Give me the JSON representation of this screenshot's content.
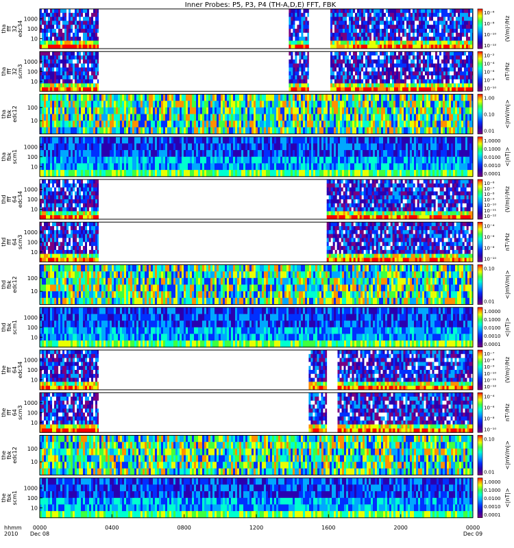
{
  "chart_data": {
    "type": "heatmap",
    "title": "Inner Probes: P5, P3, P4 (TH-A,D,E) FFT, FBK",
    "x_axis": {
      "label_top": "hhmm",
      "label_bottom": "2010",
      "range_hours": [
        0,
        24
      ],
      "ticks": [
        {
          "hour": 0,
          "label": "0000",
          "sublabel": "Dec 08"
        },
        {
          "hour": 4,
          "label": "0400",
          "sublabel": ""
        },
        {
          "hour": 8,
          "label": "0800",
          "sublabel": ""
        },
        {
          "hour": 12,
          "label": "1200",
          "sublabel": ""
        },
        {
          "hour": 16,
          "label": "1600",
          "sublabel": ""
        },
        {
          "hour": 20,
          "label": "2000",
          "sublabel": ""
        },
        {
          "hour": 24,
          "label": "0000",
          "sublabel": "Dec 09"
        }
      ]
    },
    "colorscale": [
      "#ffffff",
      "#7a0080",
      "#2a00b0",
      "#0030ff",
      "#00a8ff",
      "#00ffd0",
      "#40ff40",
      "#e8ff00",
      "#ff9000",
      "#ff0000"
    ],
    "panels": [
      {
        "probe": "tha",
        "ylabel": [
          "tha",
          "fff",
          "32",
          "edc34"
        ],
        "yticks": [
          "1000",
          "100",
          "10"
        ],
        "cbar_label": "(V/m)²/Hz",
        "cbar_ticks": [
          "10⁻⁶",
          "10⁻⁸",
          "10⁻¹⁰",
          "10⁻¹²"
        ],
        "kind": "fff",
        "data_segments_hours": [
          [
            0,
            3.25
          ],
          [
            13.8,
            14.9
          ],
          [
            16.1,
            24
          ]
        ]
      },
      {
        "probe": "tha",
        "ylabel": [
          "tha",
          "fff",
          "32",
          "scm3"
        ],
        "yticks": [
          "1000",
          "100",
          "10"
        ],
        "cbar_label": "nT²/Hz",
        "cbar_ticks": [
          "10⁻²",
          "10⁻⁴",
          "10⁻⁶",
          "10⁻⁸",
          "10⁻¹⁰"
        ],
        "kind": "fff",
        "data_segments_hours": [
          [
            0,
            3.25
          ],
          [
            13.8,
            14.9
          ],
          [
            16.1,
            24
          ]
        ]
      },
      {
        "probe": "tha",
        "ylabel": [
          "tha",
          "fbk",
          "edc12"
        ],
        "yticks": [
          "100",
          "10"
        ],
        "cbar_label": "<|mV/m|>",
        "cbar_ticks": [
          "1.00",
          "0.10",
          "0.01"
        ],
        "kind": "fbk_e",
        "data_segments_hours": [
          [
            0,
            24
          ]
        ]
      },
      {
        "probe": "tha",
        "ylabel": [
          "tha",
          "fbk",
          "scm1"
        ],
        "yticks": [
          "1000",
          "100",
          "10"
        ],
        "cbar_label": "<|nT|>",
        "cbar_ticks": [
          "1.0000",
          "0.1000",
          "0.0100",
          "0.0010",
          "0.0001"
        ],
        "kind": "fbk_b",
        "data_segments_hours": [
          [
            0,
            24
          ]
        ]
      },
      {
        "probe": "thd",
        "ylabel": [
          "thd",
          "fff",
          "64",
          "edc34"
        ],
        "yticks": [
          "1000",
          "100",
          "10"
        ],
        "cbar_label": "(V/m)²/Hz",
        "cbar_ticks": [
          "10⁻⁶",
          "10⁻⁷",
          "10⁻⁸",
          "10⁻⁹",
          "10⁻¹⁰",
          "10⁻¹¹",
          "10⁻¹²"
        ],
        "kind": "fff",
        "data_segments_hours": [
          [
            0,
            3.25
          ],
          [
            15.9,
            24
          ]
        ]
      },
      {
        "probe": "thd",
        "ylabel": [
          "thd",
          "fff",
          "64",
          "scm3"
        ],
        "yticks": [
          "1000",
          "100",
          "10"
        ],
        "cbar_label": "nT²/Hz",
        "cbar_ticks": [
          "10⁻⁴",
          "10⁻⁶",
          "10⁻⁸",
          "10⁻¹⁰"
        ],
        "kind": "fff",
        "data_segments_hours": [
          [
            0,
            3.25
          ],
          [
            15.9,
            24
          ]
        ]
      },
      {
        "probe": "thd",
        "ylabel": [
          "thd",
          "fbk",
          "edc12"
        ],
        "yticks": [
          "100",
          "10"
        ],
        "cbar_label": "<|mV/m|>",
        "cbar_ticks": [
          "0.10",
          "0.01"
        ],
        "kind": "fbk_e",
        "data_segments_hours": [
          [
            0,
            24
          ]
        ]
      },
      {
        "probe": "thd",
        "ylabel": [
          "thd",
          "fbk",
          "scm1"
        ],
        "yticks": [
          "1000",
          "100",
          "10"
        ],
        "cbar_label": "<|nT|>",
        "cbar_ticks": [
          "1.0000",
          "0.1000",
          "0.0100",
          "0.0010",
          "0.0001"
        ],
        "kind": "fbk_b",
        "data_segments_hours": [
          [
            0,
            24
          ]
        ]
      },
      {
        "probe": "the",
        "ylabel": [
          "the",
          "fff",
          "64",
          "edc34"
        ],
        "yticks": [
          "1000",
          "100",
          "10"
        ],
        "cbar_label": "(V/m)²/Hz",
        "cbar_ticks": [
          "10⁻⁷",
          "10⁻⁸",
          "10⁻⁹",
          "10⁻¹⁰",
          "10⁻¹¹",
          "10⁻¹²"
        ],
        "kind": "fff",
        "data_segments_hours": [
          [
            0,
            3.25
          ],
          [
            14.9,
            15.9
          ],
          [
            16.5,
            24
          ]
        ]
      },
      {
        "probe": "the",
        "ylabel": [
          "the",
          "fff",
          "64",
          "scm3"
        ],
        "yticks": [
          "1000",
          "100",
          "10"
        ],
        "cbar_label": "nT²/Hz",
        "cbar_ticks": [
          "10⁻⁴",
          "10⁻⁶",
          "10⁻⁸",
          "10⁻¹⁰"
        ],
        "kind": "fff",
        "data_segments_hours": [
          [
            0,
            3.25
          ],
          [
            14.9,
            15.9
          ],
          [
            16.5,
            24
          ]
        ]
      },
      {
        "probe": "the",
        "ylabel": [
          "the",
          "fbk",
          "edc12"
        ],
        "yticks": [
          "100",
          "10"
        ],
        "cbar_label": "<|mV/m|>",
        "cbar_ticks": [
          "0.10",
          "0.01"
        ],
        "kind": "fbk_e",
        "data_segments_hours": [
          [
            0,
            24
          ]
        ]
      },
      {
        "probe": "the",
        "ylabel": [
          "the",
          "fbk",
          "scm1"
        ],
        "yticks": [
          "1000",
          "100",
          "10"
        ],
        "cbar_label": "<|nT|>",
        "cbar_ticks": [
          "1.0000",
          "0.1000",
          "0.0100",
          "0.0010",
          "0.0001"
        ],
        "kind": "fbk_b",
        "data_segments_hours": [
          [
            0,
            24
          ]
        ]
      }
    ]
  }
}
